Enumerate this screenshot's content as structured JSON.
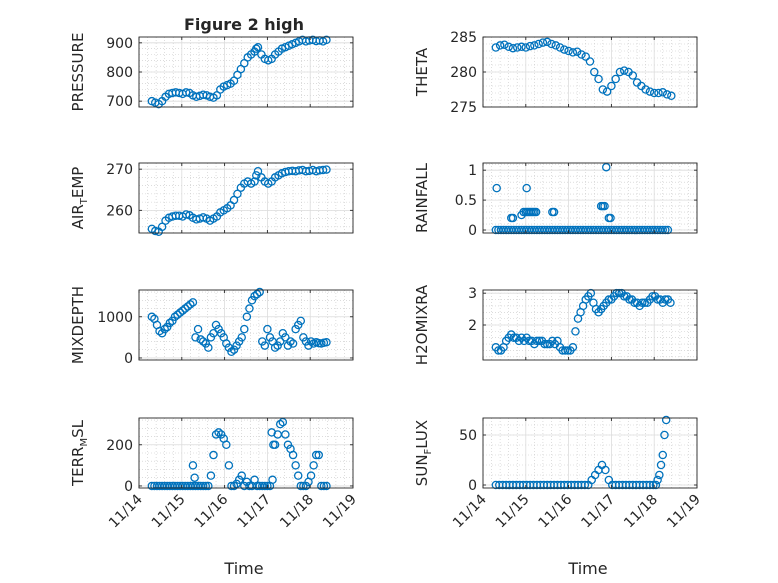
{
  "figure": {
    "title": "Figure 2 high",
    "marker_color": "#0072BD"
  },
  "chart_data": [
    {
      "type": "scatter",
      "ylabel_main": "PRESSURE",
      "ylabel_sub": "",
      "ylim": [
        680,
        920
      ],
      "yticks": [
        700,
        800,
        900
      ],
      "xlim": [
        0,
        5
      ],
      "x": [
        0.3,
        0.38,
        0.46,
        0.54,
        0.62,
        0.7,
        0.78,
        0.86,
        0.94,
        1.02,
        1.1,
        1.18,
        1.26,
        1.34,
        1.42,
        1.5,
        1.58,
        1.66,
        1.74,
        1.82,
        1.9,
        1.98,
        2.06,
        2.14,
        2.22,
        2.3,
        2.38,
        2.46,
        2.54,
        2.62,
        2.7,
        2.74,
        2.78,
        2.86,
        2.94,
        3.02,
        3.1,
        3.18,
        3.26,
        3.34,
        3.42,
        3.5,
        3.58,
        3.66,
        3.74,
        3.82,
        3.9,
        3.98,
        4.06,
        4.14,
        4.22,
        4.3,
        4.38
      ],
      "y": [
        700,
        695,
        690,
        700,
        715,
        725,
        728,
        730,
        728,
        725,
        730,
        728,
        720,
        715,
        718,
        722,
        720,
        715,
        712,
        720,
        740,
        750,
        755,
        760,
        770,
        790,
        810,
        830,
        850,
        860,
        870,
        880,
        885,
        860,
        845,
        840,
        845,
        860,
        870,
        880,
        885,
        890,
        895,
        900,
        905,
        910,
        905,
        908,
        910,
        906,
        908,
        905,
        910
      ]
    },
    {
      "type": "scatter",
      "ylabel_main": "THETA",
      "ylabel_sub": "",
      "ylim": [
        275,
        285
      ],
      "yticks": [
        275,
        280,
        285
      ],
      "xlim": [
        0,
        5
      ],
      "x": [
        0.3,
        0.4,
        0.5,
        0.6,
        0.7,
        0.8,
        0.9,
        1.0,
        1.1,
        1.2,
        1.3,
        1.4,
        1.5,
        1.6,
        1.7,
        1.8,
        1.9,
        2.0,
        2.1,
        2.2,
        2.3,
        2.4,
        2.5,
        2.6,
        2.7,
        2.8,
        2.9,
        3.0,
        3.1,
        3.2,
        3.3,
        3.4,
        3.5,
        3.6,
        3.7,
        3.8,
        3.9,
        4.0,
        4.1,
        4.2,
        4.3,
        4.4
      ],
      "y": [
        283.5,
        283.8,
        283.9,
        283.6,
        283.4,
        283.5,
        283.6,
        283.5,
        283.7,
        283.8,
        284.0,
        284.2,
        284.3,
        284.0,
        283.8,
        283.5,
        283.2,
        283.0,
        282.8,
        282.9,
        282.5,
        282.2,
        281.5,
        280.0,
        279.0,
        277.5,
        277.2,
        278.0,
        279.0,
        280.0,
        280.2,
        280.0,
        279.5,
        278.5,
        278.0,
        277.5,
        277.2,
        277.0,
        277.0,
        277.1,
        276.8,
        276.6
      ]
    },
    {
      "type": "scatter",
      "ylabel_main": "AIR",
      "ylabel_sub": "T",
      "ylabel_tail": "EMP",
      "ylim": [
        254.5,
        271.5
      ],
      "yticks": [
        260,
        270
      ],
      "xlim": [
        0,
        5
      ],
      "x": [
        0.3,
        0.38,
        0.46,
        0.54,
        0.62,
        0.7,
        0.78,
        0.86,
        0.94,
        1.02,
        1.1,
        1.18,
        1.26,
        1.34,
        1.42,
        1.5,
        1.58,
        1.66,
        1.74,
        1.82,
        1.9,
        1.98,
        2.06,
        2.14,
        2.22,
        2.3,
        2.38,
        2.46,
        2.54,
        2.62,
        2.7,
        2.74,
        2.78,
        2.86,
        2.94,
        3.02,
        3.1,
        3.18,
        3.26,
        3.34,
        3.42,
        3.5,
        3.58,
        3.66,
        3.74,
        3.82,
        3.9,
        3.98,
        4.06,
        4.14,
        4.22,
        4.3,
        4.38
      ],
      "y": [
        255.5,
        255.0,
        254.8,
        256,
        257.5,
        258.2,
        258.5,
        258.7,
        258.7,
        258.5,
        259.0,
        258.8,
        258.2,
        257.8,
        258.0,
        258.3,
        258.0,
        257.5,
        258.0,
        258.5,
        259.5,
        260,
        260.5,
        261.2,
        262.5,
        264.0,
        265.5,
        266.5,
        267.0,
        266.5,
        267,
        268.5,
        269.5,
        268,
        267,
        266.5,
        267.0,
        268.0,
        268.5,
        269.0,
        269.3,
        269.5,
        269.6,
        269.5,
        269.7,
        269.8,
        269.5,
        269.6,
        269.8,
        269.5,
        269.7,
        269.8,
        269.9
      ]
    },
    {
      "type": "scatter",
      "ylabel_main": "RAINFALL",
      "ylabel_sub": "",
      "ylim": [
        -0.05,
        1.12
      ],
      "yticks": [
        0,
        0.5,
        1
      ],
      "ytick_labels": [
        "0",
        "0.5",
        "1"
      ],
      "xlim": [
        0,
        5
      ],
      "x": [
        0.3,
        0.36,
        0.42,
        0.48,
        0.54,
        0.6,
        0.66,
        0.72,
        0.78,
        0.84,
        0.9,
        0.96,
        1.02,
        1.08,
        1.14,
        1.2,
        1.26,
        1.32,
        1.38,
        1.44,
        1.5,
        1.56,
        1.62,
        1.68,
        1.74,
        1.8,
        1.86,
        1.92,
        1.98,
        2.04,
        2.1,
        2.16,
        2.22,
        2.28,
        2.34,
        2.4,
        2.46,
        2.52,
        2.58,
        2.64,
        2.7,
        2.76,
        2.82,
        2.88,
        2.94,
        3.0,
        3.06,
        3.12,
        3.18,
        3.24,
        3.3,
        3.36,
        3.42,
        3.48,
        3.54,
        3.6,
        3.66,
        3.72,
        3.78,
        3.84,
        3.9,
        3.96,
        4.02,
        4.08,
        4.14,
        4.2,
        4.26,
        4.32,
        0.32,
        1.02,
        0.66,
        0.7,
        0.9,
        0.95,
        1.0,
        1.04,
        1.08,
        1.12,
        1.16,
        1.2,
        1.24,
        1.62,
        1.66,
        2.76,
        2.8,
        2.84,
        2.94,
        2.98,
        2.88
      ],
      "y": [
        0,
        0,
        0,
        0,
        0,
        0,
        0,
        0,
        0,
        0,
        0,
        0,
        0,
        0,
        0,
        0,
        0,
        0,
        0,
        0,
        0,
        0,
        0,
        0,
        0,
        0,
        0,
        0,
        0,
        0,
        0,
        0,
        0,
        0,
        0,
        0,
        0,
        0,
        0,
        0,
        0,
        0,
        0,
        0,
        0,
        0,
        0,
        0,
        0,
        0,
        0,
        0,
        0,
        0,
        0,
        0,
        0,
        0,
        0,
        0,
        0,
        0,
        0,
        0,
        0,
        0,
        0,
        0,
        0.7,
        0.7,
        0.2,
        0.2,
        0.25,
        0.3,
        0.3,
        0.3,
        0.3,
        0.3,
        0.3,
        0.3,
        0.3,
        0.3,
        0.3,
        0.4,
        0.4,
        0.4,
        0.2,
        0.2,
        1.05
      ]
    },
    {
      "type": "scatter",
      "ylabel_main": "MIXDEPTH",
      "ylabel_sub": "",
      "ylim": [
        -50,
        1650
      ],
      "yticks": [
        0,
        1000
      ],
      "xlim": [
        0,
        5
      ],
      "x": [
        0.3,
        0.36,
        0.42,
        0.48,
        0.54,
        0.6,
        0.66,
        0.72,
        0.78,
        0.84,
        0.9,
        0.96,
        1.02,
        1.08,
        1.14,
        1.2,
        1.26,
        1.32,
        1.38,
        1.44,
        1.5,
        1.56,
        1.62,
        1.68,
        1.74,
        1.8,
        1.86,
        1.92,
        1.98,
        2.04,
        2.1,
        2.16,
        2.22,
        2.28,
        2.34,
        2.4,
        2.46,
        2.52,
        2.58,
        2.64,
        2.7,
        2.76,
        2.82,
        2.88,
        2.94,
        3.0,
        3.06,
        3.12,
        3.18,
        3.24,
        3.3,
        3.36,
        3.42,
        3.48,
        3.54,
        3.6,
        3.66,
        3.72,
        3.78,
        3.84,
        3.9,
        3.96,
        4.02,
        4.08,
        4.14,
        4.2,
        4.26,
        4.32,
        4.38
      ],
      "y": [
        1000,
        950,
        800,
        650,
        600,
        700,
        750,
        850,
        900,
        1000,
        1050,
        1100,
        1150,
        1200,
        1250,
        1300,
        1350,
        500,
        700,
        450,
        400,
        350,
        250,
        500,
        600,
        800,
        700,
        600,
        500,
        350,
        250,
        150,
        200,
        300,
        400,
        500,
        700,
        1000,
        1200,
        1400,
        1500,
        1550,
        1600,
        400,
        300,
        700,
        500,
        400,
        250,
        300,
        400,
        600,
        500,
        300,
        400,
        350,
        700,
        800,
        900,
        500,
        400,
        300,
        400,
        350,
        380,
        360,
        350,
        370,
        380
      ]
    },
    {
      "type": "scatter",
      "ylabel_main": "H2OMIXRA",
      "ylabel_sub": "",
      "ylim": [
        0.9,
        3.1
      ],
      "yticks": [
        2,
        3
      ],
      "xlim": [
        0,
        5
      ],
      "x": [
        0.3,
        0.36,
        0.42,
        0.48,
        0.54,
        0.6,
        0.66,
        0.72,
        0.78,
        0.84,
        0.9,
        0.96,
        1.02,
        1.08,
        1.14,
        1.2,
        1.26,
        1.32,
        1.38,
        1.44,
        1.5,
        1.56,
        1.62,
        1.68,
        1.74,
        1.8,
        1.86,
        1.92,
        1.98,
        2.04,
        2.1,
        2.16,
        2.22,
        2.28,
        2.34,
        2.4,
        2.46,
        2.52,
        2.58,
        2.64,
        2.7,
        2.76,
        2.82,
        2.88,
        2.94,
        3.0,
        3.06,
        3.12,
        3.18,
        3.24,
        3.3,
        3.36,
        3.42,
        3.48,
        3.54,
        3.6,
        3.66,
        3.72,
        3.78,
        3.84,
        3.9,
        3.96,
        4.02,
        4.08,
        4.14,
        4.2,
        4.26,
        4.32,
        4.38
      ],
      "y": [
        1.3,
        1.2,
        1.2,
        1.3,
        1.5,
        1.6,
        1.7,
        1.6,
        1.6,
        1.5,
        1.6,
        1.5,
        1.6,
        1.5,
        1.5,
        1.4,
        1.5,
        1.5,
        1.5,
        1.4,
        1.4,
        1.4,
        1.5,
        1.4,
        1.5,
        1.3,
        1.2,
        1.2,
        1.2,
        1.2,
        1.3,
        1.8,
        2.2,
        2.4,
        2.6,
        2.8,
        2.9,
        3.0,
        2.7,
        2.5,
        2.4,
        2.5,
        2.6,
        2.7,
        2.8,
        2.8,
        2.9,
        3.0,
        3.0,
        3.0,
        2.9,
        2.9,
        2.8,
        2.8,
        2.7,
        2.7,
        2.6,
        2.7,
        2.7,
        2.7,
        2.8,
        2.9,
        2.9,
        2.8,
        2.8,
        2.7,
        2.8,
        2.8,
        2.7
      ]
    },
    {
      "type": "scatter",
      "ylabel_main": "TERR",
      "ylabel_sub": "M",
      "ylabel_tail": "SL",
      "ylim": [
        -10,
        330
      ],
      "yticks": [
        0,
        200
      ],
      "xlim": [
        0,
        5
      ],
      "x": [
        0.3,
        0.36,
        0.42,
        0.48,
        0.54,
        0.6,
        0.66,
        0.72,
        0.78,
        0.84,
        0.9,
        0.96,
        1.02,
        1.08,
        1.14,
        1.2,
        1.26,
        1.32,
        1.38,
        1.44,
        1.5,
        1.56,
        1.62,
        1.68,
        1.74,
        1.8,
        1.86,
        1.92,
        1.98,
        2.04,
        2.1,
        2.16,
        2.22,
        2.28,
        2.34,
        2.4,
        2.46,
        2.52,
        2.58,
        2.64,
        2.7,
        2.76,
        2.82,
        2.88,
        2.94,
        3.0,
        3.06,
        3.12,
        3.18,
        3.24,
        3.3,
        3.36,
        3.42,
        3.48,
        3.54,
        3.6,
        3.66,
        3.72,
        3.78,
        3.84,
        3.9,
        3.96,
        4.02,
        4.08,
        4.14,
        4.2,
        4.26,
        4.32,
        4.38,
        1.26,
        1.3,
        3.1,
        3.14
      ],
      "y": [
        0,
        0,
        0,
        0,
        0,
        0,
        0,
        0,
        0,
        0,
        0,
        0,
        0,
        0,
        0,
        0,
        0,
        0,
        0,
        0,
        0,
        0,
        0,
        50,
        150,
        250,
        260,
        250,
        230,
        200,
        100,
        0,
        0,
        10,
        30,
        50,
        0,
        20,
        0,
        0,
        30,
        0,
        0,
        0,
        0,
        0,
        0,
        30,
        200,
        250,
        300,
        310,
        250,
        200,
        180,
        150,
        100,
        50,
        0,
        0,
        0,
        20,
        50,
        100,
        150,
        150,
        0,
        0,
        0,
        100,
        40,
        260,
        200
      ]
    },
    {
      "type": "scatter",
      "ylabel_main": "SUN",
      "ylabel_sub": "F",
      "ylabel_tail": "LUX",
      "ylim": [
        -3,
        67
      ],
      "yticks": [
        0,
        50
      ],
      "xlim": [
        0,
        5
      ],
      "x": [
        0.3,
        0.38,
        0.46,
        0.54,
        0.62,
        0.7,
        0.78,
        0.86,
        0.94,
        1.02,
        1.1,
        1.18,
        1.26,
        1.34,
        1.42,
        1.5,
        1.58,
        1.66,
        1.74,
        1.82,
        1.9,
        1.98,
        2.06,
        2.14,
        2.22,
        2.3,
        2.38,
        2.46,
        2.54,
        2.62,
        2.7,
        2.78,
        2.86,
        2.94,
        3.02,
        3.1,
        3.18,
        3.26,
        3.34,
        3.42,
        3.5,
        3.58,
        3.66,
        3.74,
        3.82,
        3.9,
        3.98,
        4.04,
        4.08,
        4.12,
        4.16,
        4.2,
        4.24,
        4.28
      ],
      "y": [
        0,
        0,
        0,
        0,
        0,
        0,
        0,
        0,
        0,
        0,
        0,
        0,
        0,
        0,
        0,
        0,
        0,
        0,
        0,
        0,
        0,
        0,
        0,
        0,
        0,
        0,
        0,
        0,
        5,
        10,
        15,
        20,
        15,
        5,
        0,
        0,
        0,
        0,
        0,
        0,
        0,
        0,
        0,
        0,
        0,
        0,
        0,
        0,
        5,
        10,
        20,
        30,
        50,
        65
      ]
    }
  ],
  "x_axis": {
    "ticks": [
      0,
      1,
      2,
      3,
      4,
      5
    ],
    "tick_labels": [
      "11/14",
      "11/15",
      "11/16",
      "11/17",
      "11/18",
      "11/19"
    ],
    "label": "Time"
  }
}
